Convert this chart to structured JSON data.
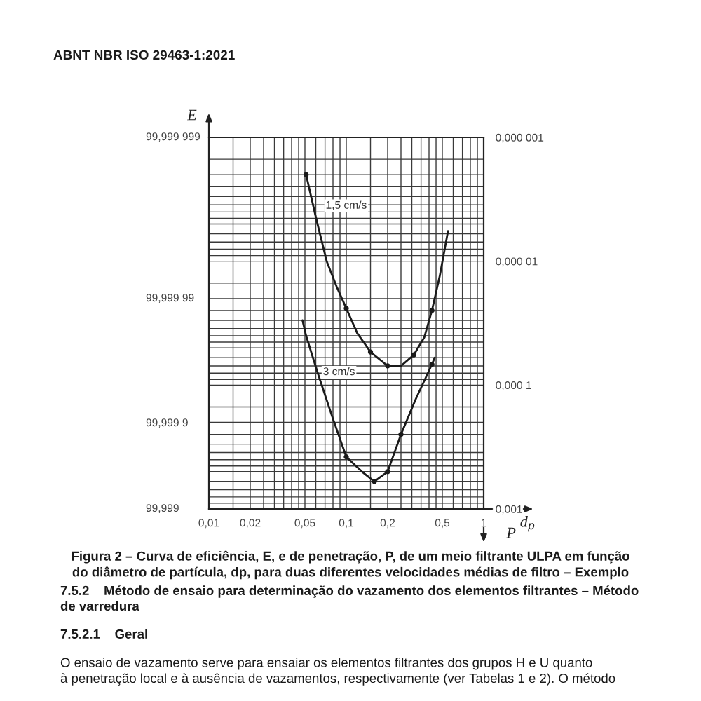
{
  "chart_data": {
    "type": "line",
    "title": "Figura 2 – Curva de eficiência, E, e de penetração, P, de um meio filtrante ULPA em função\ndo diâmetro de partícula, dp, para duas diferentes velocidades médias de filtro – Exemplo",
    "xlabel": "d$_{p}$",
    "ylabel": "P",
    "annotations": [
      "ABNT NBR ISO 29463-1:2021",
      "E",
      "99,999 999",
      "99,999 99",
      "99,999 9",
      "99,999",
      "7.5.2    Método de ensaio para determinação do vazamento dos elementos filtrantes – Método\nde varredura",
      "7.5.2.1    Geral",
      "O ensaio de vazamento serve para ensaiar os elementos filtrantes dos grupos H e U quanto\nà penetração local e à ausência de vazamentos, respectivamente (ver Tabelas 1 e 2). O método"
    ],
    "log": "xy",
    "grid": true,
    "xlim": [
      0.01,
      1
    ],
    "xticks": [
      {
        "value": 0.01,
        "label": "0,01"
      },
      {
        "value": 0.02,
        "label": "0,02"
      },
      {
        "value": 0.05,
        "label": "0,05"
      },
      {
        "value": 0.1,
        "label": "0,1"
      },
      {
        "value": 0.2,
        "label": "0,2"
      },
      {
        "value": 0.5,
        "label": "0,5"
      },
      1
    ],
    "ylim": [
      0.001,
      1e-06
    ],
    "yticks": [
      {
        "value": 1e-06,
        "label": "0,000 001"
      },
      {
        "value": 1e-05,
        "label": "0,000 01"
      },
      {
        "value": 0.0001,
        "label": "0,000 1"
      },
      {
        "value": 0.001,
        "label": "0,001"
      }
    ],
    "series": [
      {
        "name": "1,5 cm/s",
        "color": "#1a1a1a",
        "x": [
          0.051,
          0.06,
          0.072,
          0.085,
          0.1,
          0.12,
          0.15,
          0.2,
          0.25,
          0.31,
          0.37,
          0.42,
          0.48,
          0.55
        ],
        "values": [
          2e-06,
          4.4e-06,
          1e-05,
          1.6e-05,
          2.4e-05,
          3.8e-05,
          5.4e-05,
          7e-05,
          7e-05,
          5.7e-05,
          4.1e-05,
          2.5e-05,
          1.3e-05,
          5.7e-06
        ]
      },
      {
        "name": "3 cm/s",
        "color": "#1a1a1a",
        "x": [
          0.048,
          0.051,
          0.062,
          0.079,
          0.1,
          0.13,
          0.16,
          0.2,
          0.25,
          0.32,
          0.42,
          0.44
        ],
        "values": [
          3e-05,
          4e-05,
          8e-05,
          0.00018,
          0.00038,
          0.0005,
          0.0006,
          0.0005,
          0.00025,
          0.00013,
          6.8e-05,
          6e-05
        ]
      },
      {
        "type": "scatter",
        "marker": "circle",
        "color": "#1a1a1a",
        "x": [
          0.051,
          0.1,
          0.15,
          0.2,
          0.31,
          0.42
        ],
        "values": [
          2e-06,
          2.4e-05,
          5.4e-05,
          7e-05,
          5.7e-05,
          2.5e-05
        ]
      },
      {
        "type": "scatter",
        "marker": "circle",
        "color": "#1a1a1a",
        "x": [
          0.1,
          0.16,
          0.2,
          0.25,
          0.42
        ],
        "values": [
          0.00038,
          0.0006,
          0.0005,
          0.00025,
          6.8e-05
        ]
      }
    ]
  }
}
